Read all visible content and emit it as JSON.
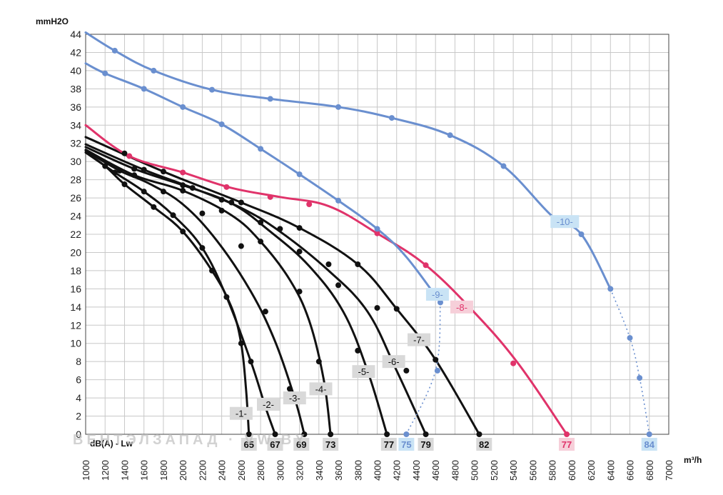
{
  "chart_data": {
    "type": "line",
    "y_unit": "mmH2O",
    "x_unit": "m³/h",
    "xlim": [
      1000,
      7000
    ],
    "ylim": [
      0,
      44
    ],
    "x_ticks": [
      1000,
      1200,
      1400,
      1600,
      1800,
      2000,
      2200,
      2400,
      2600,
      2800,
      3000,
      3200,
      3400,
      3600,
      3800,
      4000,
      4200,
      4400,
      4600,
      4800,
      5000,
      5200,
      5400,
      5600,
      5800,
      6000,
      6200,
      6400,
      6600,
      6800,
      7000
    ],
    "y_ticks": [
      0,
      2,
      4,
      6,
      8,
      10,
      12,
      14,
      16,
      18,
      20,
      22,
      24,
      26,
      28,
      30,
      32,
      34,
      36,
      38,
      40,
      42,
      44
    ],
    "grid": true,
    "noise_label": "dB(A) - Lw",
    "watermark": "ВЕНТЭЛЗАПАД · VW.BY",
    "colors": {
      "black": "#111111",
      "pink": "#e0336a",
      "blue": "#6a8fcf",
      "grid": "#c8c8c8",
      "label_box": "#d9d9d9",
      "label_box_blue": "#c9e3f5",
      "label_box_pink": "#f6cfd9"
    },
    "series": [
      {
        "name": "-1-",
        "color": "black",
        "db": "65",
        "points": [
          [
            1000,
            31.0
          ],
          [
            1200,
            29.5
          ],
          [
            1400,
            27.5
          ],
          [
            1700,
            25.0
          ],
          [
            2000,
            22.3
          ],
          [
            2300,
            18.0
          ],
          [
            2500,
            14.0
          ],
          [
            2600,
            10.0
          ],
          [
            2650,
            5.0
          ],
          [
            2680,
            0
          ]
        ],
        "markers": [
          [
            1200,
            29.5
          ],
          [
            1400,
            27.5
          ],
          [
            1700,
            25.0
          ],
          [
            2000,
            22.3
          ],
          [
            2300,
            18.0
          ],
          [
            2600,
            10.0
          ],
          [
            2680,
            0
          ]
        ],
        "label_at": [
          2600,
          2.3
        ]
      },
      {
        "name": "-2-",
        "color": "black",
        "db": "67",
        "points": [
          [
            1000,
            31.0
          ],
          [
            1300,
            28.8
          ],
          [
            1600,
            26.7
          ],
          [
            1900,
            24.1
          ],
          [
            2200,
            20.5
          ],
          [
            2450,
            15.1
          ],
          [
            2700,
            8.0
          ],
          [
            2850,
            3.0
          ],
          [
            2950,
            0
          ]
        ],
        "markers": [
          [
            1300,
            28.8
          ],
          [
            1600,
            26.7
          ],
          [
            1900,
            24.1
          ],
          [
            2200,
            20.5
          ],
          [
            2450,
            15.1
          ],
          [
            2700,
            8.0
          ],
          [
            2950,
            0
          ]
        ],
        "label_at": [
          2880,
          3.3
        ]
      },
      {
        "name": "-3-",
        "color": "black",
        "db": "69",
        "points": [
          [
            1000,
            31.2
          ],
          [
            1350,
            29.0
          ],
          [
            1650,
            27.6
          ],
          [
            2000,
            25.3
          ],
          [
            2350,
            21.3
          ],
          [
            2700,
            15.7
          ],
          [
            2950,
            10.2
          ],
          [
            3150,
            4.0
          ],
          [
            3250,
            0
          ]
        ],
        "markers": [
          [
            1350,
            29.0
          ],
          [
            1800,
            26.7
          ],
          [
            2200,
            24.3
          ],
          [
            2600,
            20.7
          ],
          [
            2850,
            13.5
          ],
          [
            3100,
            5.0
          ],
          [
            3250,
            0
          ]
        ],
        "label_at": [
          3150,
          4.0
        ]
      },
      {
        "name": "-4-",
        "color": "black",
        "db": "73",
        "points": [
          [
            1000,
            31.3
          ],
          [
            1500,
            28.5
          ],
          [
            2000,
            26.8
          ],
          [
            2500,
            24.1
          ],
          [
            2800,
            21.2
          ],
          [
            3100,
            17.0
          ],
          [
            3300,
            12.5
          ],
          [
            3450,
            6.0
          ],
          [
            3520,
            0
          ]
        ],
        "markers": [
          [
            1500,
            28.5
          ],
          [
            2000,
            26.8
          ],
          [
            2400,
            24.6
          ],
          [
            2800,
            21.2
          ],
          [
            3200,
            15.7
          ],
          [
            3400,
            8.0
          ],
          [
            3520,
            0
          ]
        ],
        "label_at": [
          3420,
          5.0
        ]
      },
      {
        "name": "-5-",
        "color": "black",
        "db": "77",
        "points": [
          [
            1000,
            31.6
          ],
          [
            1500,
            29.2
          ],
          [
            2000,
            27.4
          ],
          [
            2500,
            25.4
          ],
          [
            2900,
            22.3
          ],
          [
            3300,
            18.5
          ],
          [
            3650,
            13.5
          ],
          [
            3900,
            7.0
          ],
          [
            4100,
            0
          ]
        ],
        "markers": [
          [
            1500,
            29.2
          ],
          [
            2000,
            27.4
          ],
          [
            2400,
            25.8
          ],
          [
            2800,
            23.3
          ],
          [
            3200,
            20.1
          ],
          [
            3600,
            16.4
          ],
          [
            3800,
            9.2
          ],
          [
            4100,
            0
          ]
        ],
        "label_at": [
          3860,
          6.9
        ]
      },
      {
        "name": "-6-",
        "color": "black",
        "db": "79",
        "points": [
          [
            1000,
            31.9
          ],
          [
            1600,
            29.1
          ],
          [
            2100,
            27.1
          ],
          [
            2600,
            24.9
          ],
          [
            3000,
            22.3
          ],
          [
            3500,
            18.0
          ],
          [
            3900,
            13.5
          ],
          [
            4200,
            7.0
          ],
          [
            4500,
            0
          ]
        ],
        "markers": [
          [
            1600,
            29.1
          ],
          [
            2100,
            27.1
          ],
          [
            2500,
            25.5
          ],
          [
            3000,
            22.6
          ],
          [
            3500,
            18.7
          ],
          [
            4000,
            13.9
          ],
          [
            4300,
            7.0
          ],
          [
            4500,
            0
          ]
        ],
        "label_at": [
          4170,
          8.0
        ]
      },
      {
        "name": "-7-",
        "color": "black",
        "db": "82",
        "points": [
          [
            1000,
            32.7
          ],
          [
            1800,
            28.9
          ],
          [
            2600,
            25.5
          ],
          [
            3200,
            22.7
          ],
          [
            3800,
            18.7
          ],
          [
            4200,
            13.8
          ],
          [
            4600,
            8.2
          ],
          [
            5050,
            0
          ]
        ],
        "markers": [
          [
            1400,
            30.9
          ],
          [
            1800,
            28.9
          ],
          [
            2600,
            25.5
          ],
          [
            3200,
            22.7
          ],
          [
            3800,
            18.7
          ],
          [
            4200,
            13.8
          ],
          [
            4600,
            8.2
          ],
          [
            5050,
            0
          ]
        ],
        "label_at": [
          4430,
          10.4
        ]
      },
      {
        "name": "-8-",
        "color": "pink",
        "db": "77",
        "points": [
          [
            1000,
            34.0
          ],
          [
            1450,
            30.6
          ],
          [
            2000,
            28.8
          ],
          [
            2500,
            27.1
          ],
          [
            3000,
            26.1
          ],
          [
            3500,
            25.1
          ],
          [
            4000,
            22.1
          ],
          [
            4500,
            18.6
          ],
          [
            5000,
            13.4
          ],
          [
            5450,
            7.8
          ],
          [
            5950,
            0
          ]
        ],
        "markers": [
          [
            1450,
            30.6
          ],
          [
            2000,
            28.8
          ],
          [
            2450,
            27.2
          ],
          [
            2900,
            26.1
          ],
          [
            3300,
            25.3
          ],
          [
            4000,
            22.1
          ],
          [
            4500,
            18.6
          ],
          [
            5400,
            7.8
          ],
          [
            5950,
            0
          ]
        ],
        "label_at": [
          4870,
          14.0
        ]
      },
      {
        "name": "-9-",
        "color": "blue",
        "db": "75",
        "solid_points": [
          [
            1000,
            40.8
          ],
          [
            1200,
            39.7
          ],
          [
            1600,
            38.0
          ],
          [
            2000,
            36.0
          ],
          [
            2400,
            34.1
          ],
          [
            2800,
            31.4
          ],
          [
            3200,
            28.6
          ],
          [
            3600,
            25.7
          ],
          [
            4000,
            22.6
          ],
          [
            4300,
            19.5
          ],
          [
            4650,
            14.5
          ]
        ],
        "dotted_points": [
          [
            4650,
            14.5
          ],
          [
            4600,
            7.0
          ],
          [
            4300,
            0
          ]
        ],
        "markers": [
          [
            1200,
            39.7
          ],
          [
            1600,
            38.0
          ],
          [
            2000,
            36.0
          ],
          [
            2400,
            34.1
          ],
          [
            2800,
            31.4
          ],
          [
            3200,
            28.6
          ],
          [
            3600,
            25.7
          ],
          [
            4000,
            22.6
          ],
          [
            4650,
            14.5
          ],
          [
            4620,
            7.0
          ],
          [
            4300,
            0
          ]
        ],
        "label_at": [
          4620,
          15.4
        ]
      },
      {
        "name": "-10-",
        "color": "blue",
        "db": "84",
        "solid_points": [
          [
            1000,
            44.2
          ],
          [
            1300,
            42.2
          ],
          [
            1700,
            40.0
          ],
          [
            2300,
            37.9
          ],
          [
            2900,
            36.9
          ],
          [
            3600,
            36.0
          ],
          [
            4150,
            34.8
          ],
          [
            4750,
            32.9
          ],
          [
            5300,
            29.5
          ],
          [
            5800,
            24.0
          ],
          [
            6100,
            22.0
          ],
          [
            6400,
            16.0
          ]
        ],
        "dotted_points": [
          [
            6400,
            16.0
          ],
          [
            6600,
            10.6
          ],
          [
            6700,
            6.2
          ],
          [
            6800,
            0
          ]
        ],
        "markers": [
          [
            1300,
            42.2
          ],
          [
            1700,
            40.0
          ],
          [
            2300,
            37.9
          ],
          [
            2900,
            36.9
          ],
          [
            3600,
            36.0
          ],
          [
            4150,
            34.8
          ],
          [
            4750,
            32.9
          ],
          [
            5300,
            29.5
          ],
          [
            6100,
            22.0
          ],
          [
            6400,
            16.0
          ],
          [
            6600,
            10.6
          ],
          [
            6700,
            6.2
          ],
          [
            6800,
            0
          ]
        ],
        "label_at": [
          5930,
          23.4
        ]
      }
    ],
    "db_labels": [
      {
        "x": 2680,
        "text": "65",
        "color": "black"
      },
      {
        "x": 2950,
        "text": "67",
        "color": "black"
      },
      {
        "x": 3220,
        "text": "69",
        "color": "black"
      },
      {
        "x": 3520,
        "text": "73",
        "color": "black"
      },
      {
        "x": 4120,
        "text": "77",
        "color": "black"
      },
      {
        "x": 4300,
        "text": "75",
        "color": "blue"
      },
      {
        "x": 4500,
        "text": "79",
        "color": "black"
      },
      {
        "x": 5100,
        "text": "82",
        "color": "black"
      },
      {
        "x": 5950,
        "text": "77",
        "color": "pink"
      },
      {
        "x": 6800,
        "text": "84",
        "color": "blue"
      }
    ]
  }
}
